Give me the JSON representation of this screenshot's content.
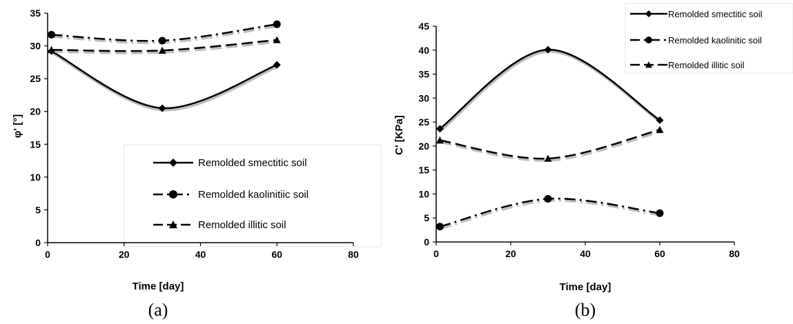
{
  "chart_data": [
    {
      "type": "line",
      "caption": "(a)",
      "xlabel": "Time [day]",
      "ylabel": "φ' [°]",
      "xlim": [
        0,
        80
      ],
      "ylim": [
        0,
        35
      ],
      "x_ticks": [
        "0",
        "20",
        "40",
        "60",
        "80"
      ],
      "y_ticks": [
        "0",
        "5",
        "10",
        "15",
        "20",
        "25",
        "30",
        "35"
      ],
      "grid": false,
      "legend_position": "bottom-right",
      "series": [
        {
          "name": "Remolded smectitic soil",
          "marker": "diamond",
          "line_style": "solid",
          "x": [
            1,
            30,
            60
          ],
          "y": [
            29.2,
            20.5,
            27.1
          ]
        },
        {
          "name": "Remolded kaolinitiic soil",
          "marker": "circle",
          "line_style": "dash-dot",
          "x": [
            1,
            30,
            60
          ],
          "y": [
            31.7,
            30.8,
            33.3
          ]
        },
        {
          "name": "Remolded illitic soil",
          "marker": "triangle",
          "line_style": "dashed",
          "x": [
            1,
            30,
            60
          ],
          "y": [
            29.4,
            29.3,
            30.9
          ]
        }
      ]
    },
    {
      "type": "line",
      "caption": "(b)",
      "xlabel": "Time [day]",
      "ylabel": "C' [KPa]",
      "xlim": [
        0,
        80
      ],
      "ylim": [
        0,
        45
      ],
      "x_ticks": [
        "0",
        "20",
        "40",
        "60",
        "80"
      ],
      "y_ticks": [
        "0",
        "5",
        "10",
        "15",
        "20",
        "25",
        "30",
        "35",
        "40",
        "45"
      ],
      "grid": false,
      "legend_position": "top-right",
      "series": [
        {
          "name": "Remolded smectitic soil",
          "marker": "diamond",
          "line_style": "solid",
          "x": [
            1,
            30,
            60
          ],
          "y": [
            23.6,
            40.1,
            25.4
          ]
        },
        {
          "name": "Remolded kaolinitic soil",
          "marker": "circle",
          "line_style": "dash-dot",
          "x": [
            1,
            30,
            60
          ],
          "y": [
            3.2,
            9.0,
            6.0
          ]
        },
        {
          "name": "Remolded illitic soil",
          "marker": "triangle",
          "line_style": "dashed",
          "x": [
            1,
            30,
            60
          ],
          "y": [
            21.2,
            17.4,
            23.4
          ]
        }
      ]
    }
  ]
}
